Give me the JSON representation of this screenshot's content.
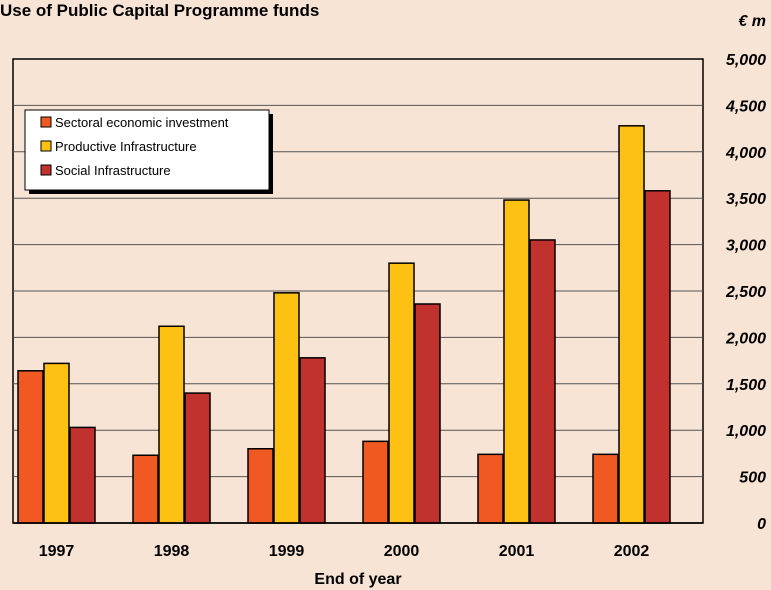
{
  "chart_data": {
    "type": "bar",
    "title": "Use of Public Capital Programme funds",
    "unit_label": "€ m",
    "xlabel": "End of year",
    "ylabel": "",
    "categories": [
      "1997",
      "1998",
      "1999",
      "2000",
      "2001",
      "2002"
    ],
    "ylim": [
      0,
      5000
    ],
    "yticks": [
      0,
      500,
      1000,
      1500,
      2000,
      2500,
      3000,
      3500,
      4000,
      4500,
      5000
    ],
    "ytick_labels": [
      "0",
      "500",
      "1,000",
      "1,500",
      "2,000",
      "2,500",
      "3,000",
      "3,500",
      "4,000",
      "4,500",
      "5,000"
    ],
    "grid": true,
    "legend_position": "top-left",
    "series": [
      {
        "name": "Sectoral economic investment",
        "color": "#f05a22",
        "values": [
          1640,
          730,
          800,
          880,
          740,
          740
        ]
      },
      {
        "name": "Productive Infrastructure",
        "color": "#fdc114",
        "values": [
          1720,
          2120,
          2480,
          2800,
          3480,
          4280
        ]
      },
      {
        "name": "Social Infrastructure",
        "color": "#c1312e",
        "values": [
          1030,
          1400,
          1780,
          2360,
          3050,
          3580
        ]
      }
    ]
  }
}
